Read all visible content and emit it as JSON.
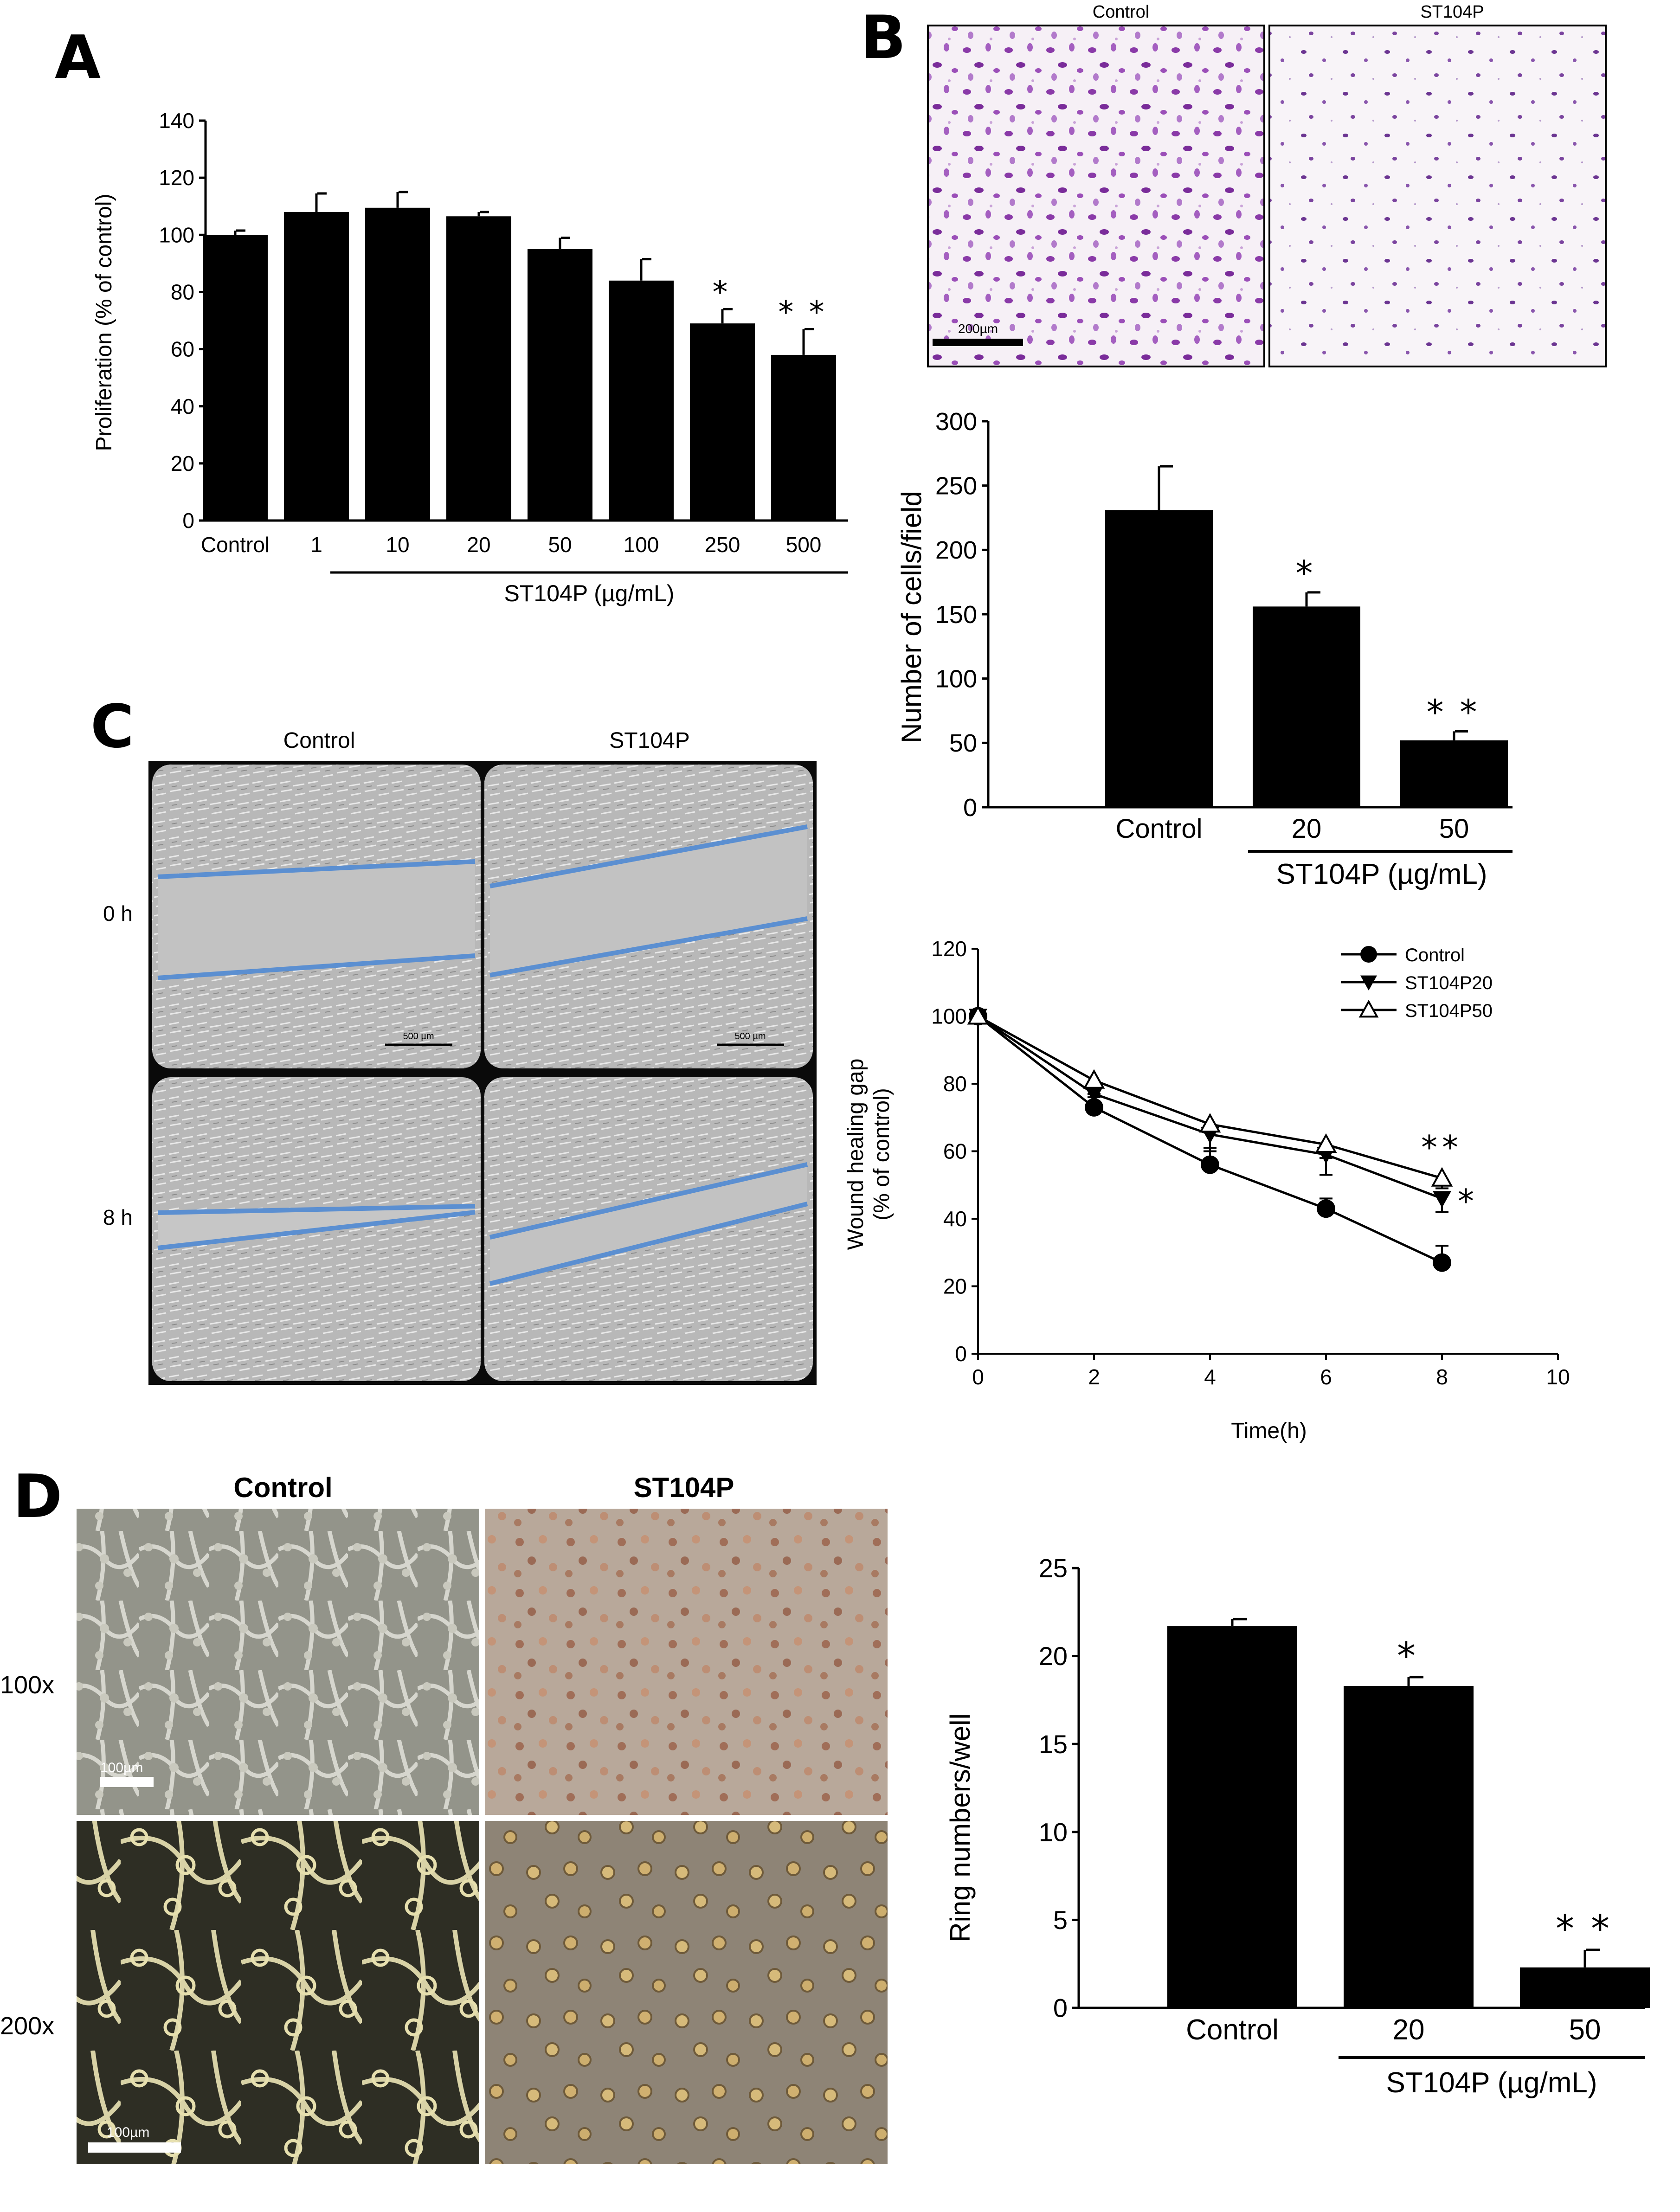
{
  "panels": {
    "A": "A",
    "B": "B",
    "C": "C",
    "D": "D"
  },
  "micro": {
    "b_control_label": "Control",
    "b_treat_label": "ST104P",
    "b_scale": "200µm",
    "c_control_label": "Control",
    "c_treat_label": "ST104P",
    "c_row_0h": "0 h",
    "c_row_8h": "8 h",
    "c_scale": "500 µm",
    "d_control_label": "Control",
    "d_treat_label": "ST104P",
    "d_row_100x": "100x",
    "d_row_200x": "200x",
    "d_scale": "100µm"
  },
  "colors": {
    "bar": "#000000",
    "wound_line": "#5b8fd1",
    "crystal_violet": "#8a3aa8",
    "phase_bg": "#b8b8b8",
    "matrigel_bg": "#9c9a86"
  },
  "chart_data": [
    {
      "id": "A",
      "type": "bar",
      "categories": [
        "Control",
        "1",
        "10",
        "20",
        "50",
        "100",
        "250",
        "500"
      ],
      "values": [
        100,
        108,
        109.5,
        106.5,
        95,
        84,
        69,
        58
      ],
      "errors": [
        1.5,
        6.5,
        5.5,
        1.5,
        4,
        7.5,
        5,
        9
      ],
      "significance": [
        "",
        "",
        "",
        "",
        "",
        "",
        "*",
        "**"
      ],
      "ylabel": "Proliferation (% of control)",
      "group_label": "ST104P (µg/mL)",
      "group_range": [
        1,
        7
      ],
      "ylim": [
        0,
        140
      ],
      "yticks": [
        0,
        20,
        40,
        60,
        80,
        100,
        120,
        140
      ],
      "grid": false
    },
    {
      "id": "B",
      "type": "bar",
      "categories": [
        "Control",
        "20",
        "50"
      ],
      "values": [
        231,
        156,
        52
      ],
      "errors": [
        34,
        11,
        7
      ],
      "significance": [
        "",
        "*",
        "**"
      ],
      "ylabel": "Number of cells/field",
      "group_label": "ST104P (µg/mL)",
      "group_range": [
        1,
        2
      ],
      "ylim": [
        0,
        300
      ],
      "yticks": [
        0,
        50,
        100,
        150,
        200,
        250,
        300
      ],
      "grid": false
    },
    {
      "id": "C",
      "type": "line",
      "ylabel": "Wound  healing gap",
      "ylabel2": "(% of control)",
      "xlabel": "Time(h)",
      "xlim": [
        0,
        10
      ],
      "ylim": [
        0,
        120
      ],
      "xticks": [
        0,
        2,
        4,
        6,
        8,
        10
      ],
      "yticks": [
        0,
        20,
        40,
        60,
        80,
        100,
        120
      ],
      "legend_position": "top-right",
      "grid": false,
      "x": [
        0,
        2,
        4,
        6,
        8
      ],
      "series": [
        {
          "name": "Control",
          "marker": "circle",
          "values": [
            100,
            73,
            56,
            43,
            27
          ],
          "errors": [
            0,
            4,
            5,
            3,
            5
          ],
          "significance": ""
        },
        {
          "name": "ST104P20",
          "marker": "triangle-down",
          "values": [
            100,
            77,
            65,
            59,
            46
          ],
          "errors": [
            0,
            3,
            5,
            6,
            4
          ],
          "significance": "*"
        },
        {
          "name": "ST104P50",
          "marker": "triangle-up",
          "values": [
            100,
            81,
            68,
            62,
            52
          ],
          "errors": [
            0,
            5,
            7,
            4,
            3
          ],
          "significance": "**"
        }
      ]
    },
    {
      "id": "D",
      "type": "bar",
      "categories": [
        "Control",
        "20",
        "50"
      ],
      "values": [
        21.7,
        18.3,
        2.3
      ],
      "errors": [
        0.4,
        0.5,
        1.0
      ],
      "significance": [
        "",
        "*",
        "**"
      ],
      "ylabel": "Ring numbers/well",
      "group_label": "ST104P (µg/mL)",
      "group_range": [
        1,
        2
      ],
      "ylim": [
        0,
        25
      ],
      "yticks": [
        0,
        5,
        10,
        15,
        20,
        25
      ],
      "grid": false
    }
  ]
}
